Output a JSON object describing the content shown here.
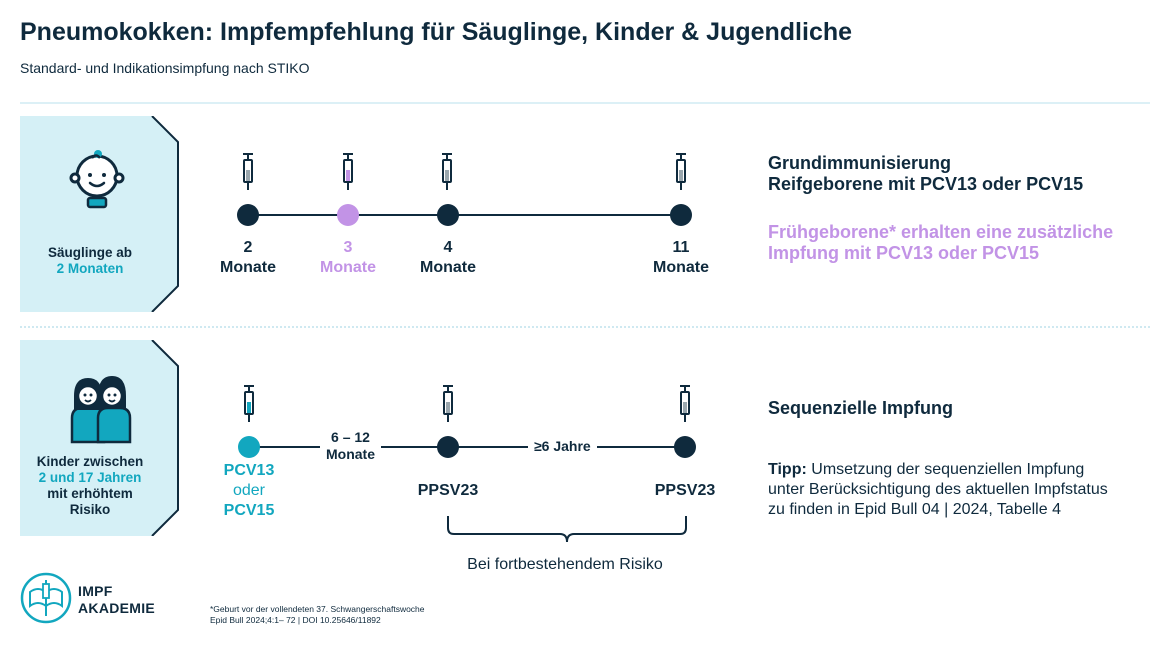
{
  "header": {
    "title": "Pneumokokken: Impfempfehlung für Säuglinge, Kinder & Jugendliche",
    "subtitle": "Standard- und Indikationsimpfung nach STIKO"
  },
  "colors": {
    "navy": "#0f2a3d",
    "teal": "#12a7bf",
    "purple": "#c293e6",
    "panel": "#d5f0f6"
  },
  "infants": {
    "group_label_line1": "Säuglinge ab",
    "group_label_line2": "2 Monaten",
    "icon": "baby-icon",
    "doses": [
      {
        "num": "2",
        "unit": "Monate"
      },
      {
        "num": "3",
        "unit": "Monate"
      },
      {
        "num": "4",
        "unit": "Monate"
      },
      {
        "num": "11",
        "unit": "Monate"
      }
    ],
    "info_line1": "Grundimmunisierung",
    "info_line2": "Reifgeborene mit PCV13 oder PCV15",
    "preterm_note": "Frühgeborene* erhalten eine zusätzliche Impfung mit PCV13 oder PCV15"
  },
  "children": {
    "group_label_line1": "Kinder zwischen",
    "group_label_line2": "2 und 17 Jahren",
    "group_label_line3": "mit erhöhtem",
    "group_label_line4": "Risiko",
    "icon": "children-icon",
    "dose1_line1": "PCV13",
    "dose1_line2": "oder",
    "dose1_line3": "PCV15",
    "interval1_line1": "6 – 12",
    "interval1_line2": "Monate",
    "dose2": "PPSV23",
    "interval2": "≥6 Jahre",
    "dose3": "PPSV23",
    "brace_text": "Bei fortbestehendem Risiko",
    "info_head": "Sequenzielle Impfung",
    "tip_label": "Tipp:",
    "tip_text": " Umsetzung der sequenziellen Impfung unter Berücksichtigung des aktuellen Impfstatus zu finden in Epid Bull 04 | 2024, Tabelle 4"
  },
  "logo": {
    "line1": "IMPF",
    "line2": "AKADEMIE"
  },
  "footnote": {
    "line1": "*Geburt vor der vollendeten 37. Schwangerschaftswoche",
    "line2": "Epid Bull 2024;4:1– 72 | DOI 10.25646/11892"
  }
}
